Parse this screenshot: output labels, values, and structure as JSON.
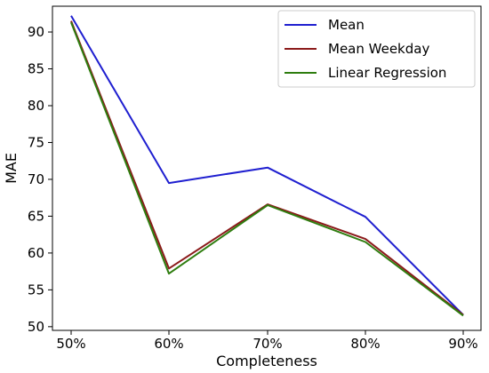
{
  "chart_data": {
    "type": "line",
    "xlabel": "Completeness",
    "ylabel": "MAE",
    "categories": [
      "50%",
      "60%",
      "70%",
      "80%",
      "90%"
    ],
    "yticks": [
      50,
      55,
      60,
      65,
      70,
      75,
      80,
      85,
      90
    ],
    "ylim": [
      49.5,
      93.5
    ],
    "grid": false,
    "legend_position": "top-right",
    "series": [
      {
        "name": "Mean",
        "color": "#1f1fd0",
        "values": [
          92.2,
          69.5,
          71.6,
          64.9,
          51.6
        ]
      },
      {
        "name": "Mean Weekday",
        "color": "#8b1a1a",
        "values": [
          91.5,
          57.9,
          66.6,
          61.9,
          51.6
        ]
      },
      {
        "name": "Linear Regression",
        "color": "#2e7d0f",
        "values": [
          91.3,
          57.2,
          66.5,
          61.5,
          51.5
        ]
      }
    ]
  }
}
